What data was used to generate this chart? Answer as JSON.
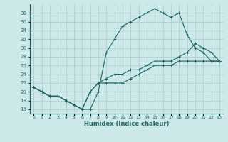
{
  "xlabel": "Humidex (Indice chaleur)",
  "ylabel": "",
  "xlim": [
    -0.5,
    23.5
  ],
  "ylim": [
    15,
    40
  ],
  "yticks": [
    16,
    18,
    20,
    22,
    24,
    26,
    28,
    30,
    32,
    34,
    36,
    38
  ],
  "xticks": [
    0,
    1,
    2,
    3,
    4,
    5,
    6,
    7,
    8,
    9,
    10,
    11,
    12,
    13,
    14,
    15,
    16,
    17,
    18,
    19,
    20,
    21,
    22,
    23
  ],
  "bg_color": "#cce8e8",
  "grid_color": "#aacccc",
  "line_color": "#1a6666",
  "line1_x": [
    0,
    1,
    2,
    3,
    4,
    5,
    6,
    7,
    8,
    9,
    10,
    11,
    12,
    13,
    14,
    15,
    16,
    17,
    18,
    19,
    20,
    21,
    22,
    23
  ],
  "line1_y": [
    21,
    20,
    19,
    19,
    18,
    17,
    16,
    16,
    20,
    29,
    32,
    35,
    36,
    37,
    38,
    39,
    38,
    37,
    38,
    33,
    30,
    29,
    27,
    27
  ],
  "line2_x": [
    0,
    1,
    2,
    3,
    4,
    5,
    6,
    7,
    8,
    9,
    10,
    11,
    12,
    13,
    14,
    15,
    16,
    17,
    18,
    19,
    20,
    21,
    22,
    23
  ],
  "line2_y": [
    21,
    20,
    19,
    19,
    18,
    17,
    16,
    20,
    22,
    22,
    22,
    22,
    23,
    24,
    25,
    26,
    26,
    26,
    27,
    27,
    27,
    27,
    27,
    27
  ],
  "line3_x": [
    0,
    1,
    2,
    3,
    4,
    5,
    6,
    7,
    8,
    9,
    10,
    11,
    12,
    13,
    14,
    15,
    16,
    17,
    18,
    19,
    20,
    21,
    22,
    23
  ],
  "line3_y": [
    21,
    20,
    19,
    19,
    18,
    17,
    16,
    20,
    22,
    23,
    24,
    24,
    25,
    25,
    26,
    27,
    27,
    27,
    28,
    29,
    31,
    30,
    29,
    27
  ]
}
